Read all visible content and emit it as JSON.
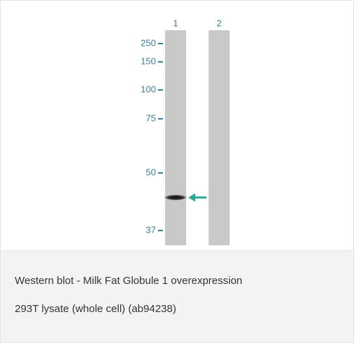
{
  "figure": {
    "lanes": [
      "1",
      "2"
    ],
    "markers": [
      250,
      150,
      100,
      75,
      50,
      37
    ]
  },
  "caption": {
    "lines": [
      "Western blot - Milk Fat Globule 1 overexpression",
      "293T lysate (whole cell) (ab94238)"
    ]
  }
}
